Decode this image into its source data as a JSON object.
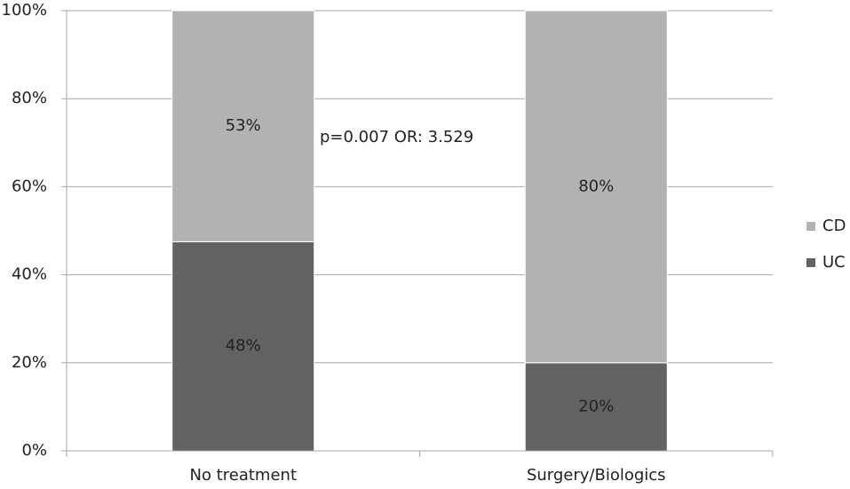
{
  "chart_data": {
    "type": "stacked_bar",
    "categories": [
      "No treatment",
      "Surgery/Biologics"
    ],
    "series": [
      {
        "name": "UC",
        "color": "#626262",
        "values": [
          47.5,
          20
        ],
        "value_labels": [
          "48%",
          "20%"
        ]
      },
      {
        "name": "CD",
        "color": "#b2b2b2",
        "values": [
          52.5,
          80
        ],
        "value_labels": [
          "53%",
          "80%"
        ]
      }
    ],
    "ylim": [
      0,
      100
    ],
    "yticks": [
      {
        "value": 0,
        "label": "0%"
      },
      {
        "value": 20,
        "label": "20%"
      },
      {
        "value": 40,
        "label": "40%"
      },
      {
        "value": 60,
        "label": "60%"
      },
      {
        "value": 80,
        "label": "80%"
      },
      {
        "value": 100,
        "label": "100%"
      }
    ],
    "grid": true,
    "legend": "right",
    "annotation": "p=0.007 OR: 3.529"
  }
}
